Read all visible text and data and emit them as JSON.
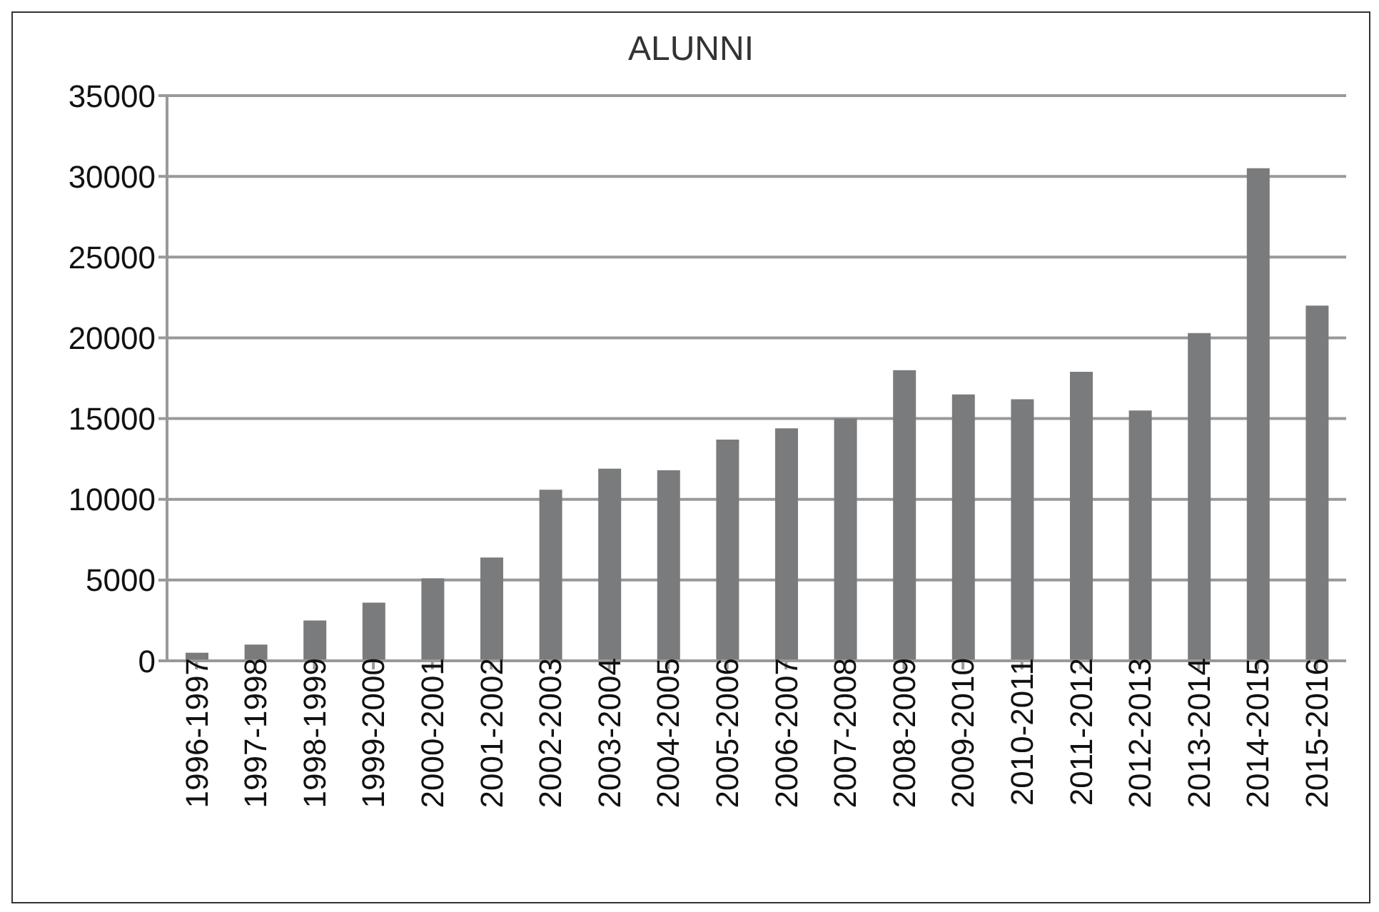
{
  "chart_data": {
    "type": "bar",
    "title": "ALUNNI",
    "categories": [
      "1996-1997",
      "1997-1998",
      "1998-1999",
      "1999-2000",
      "2000-2001",
      "2001-2002",
      "2002-2003",
      "2003-2004",
      "2004-2005",
      "2005-2006",
      "2006-2007",
      "2007-2008",
      "2008-2009",
      "2009-2010",
      "2010-2011",
      "2011-2012",
      "2012-2013",
      "2013-2014",
      "2014-2015",
      "2015-2016"
    ],
    "values": [
      500,
      1000,
      2500,
      3600,
      5100,
      6400,
      10600,
      11900,
      11800,
      13700,
      14400,
      15000,
      18000,
      16500,
      16200,
      17900,
      15500,
      20300,
      30500,
      22000
    ],
    "color": "#7a7b7d",
    "ylim": [
      0,
      35000
    ],
    "yticks": [
      0,
      5000,
      10000,
      15000,
      20000,
      25000,
      30000,
      35000
    ],
    "grid": "y"
  }
}
